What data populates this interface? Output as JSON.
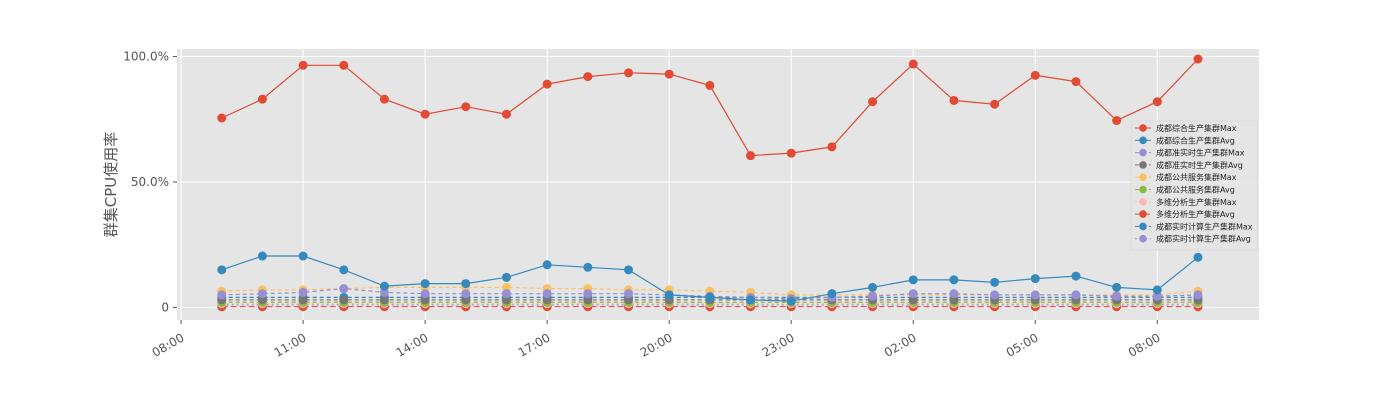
{
  "chart_data": {
    "type": "line",
    "title": "",
    "xlabel": "",
    "ylabel": "群集CPU使用率",
    "ylim": [
      -5,
      103
    ],
    "y_ticks": [
      {
        "value": 0,
        "label": "0"
      },
      {
        "value": 50,
        "label": "50.0%"
      },
      {
        "value": 100,
        "label": "100.0%"
      }
    ],
    "x_unit": "hours since first tick (08:00 day 1)",
    "x_range": [
      -0.1,
      26.5
    ],
    "x_ticks": [
      {
        "value": 0,
        "label": "08:00"
      },
      {
        "value": 3,
        "label": "11:00"
      },
      {
        "value": 6,
        "label": "14:00"
      },
      {
        "value": 9,
        "label": "17:00"
      },
      {
        "value": 12,
        "label": "20:00"
      },
      {
        "value": 15,
        "label": "23:00"
      },
      {
        "value": 18,
        "label": "02:00"
      },
      {
        "value": 21,
        "label": "05:00"
      },
      {
        "value": 24,
        "label": "08:00"
      }
    ],
    "x": [
      1,
      2,
      3,
      4,
      5,
      6,
      7,
      8,
      9,
      10,
      11,
      12,
      13,
      14,
      15,
      16,
      17,
      18,
      19,
      20,
      21,
      22,
      23,
      24,
      25
    ],
    "grid": true,
    "legend_position": "center-right",
    "series": [
      {
        "name": "成都综合生产集群Max",
        "color": "#E24A33",
        "dash": "",
        "values": [
          75.5,
          83,
          96.5,
          96.5,
          83,
          77,
          80,
          77,
          89,
          92,
          93.5,
          93,
          88.5,
          60.5,
          61.5,
          64,
          82,
          97,
          82.5,
          81,
          92.5,
          90,
          74.5,
          82,
          99
        ]
      },
      {
        "name": "成都综合生产集群Avg",
        "color": "#348ABD",
        "dash": "",
        "values": [
          15,
          20.5,
          20.5,
          15,
          8.5,
          9.5,
          9.5,
          12,
          17,
          16,
          15,
          5,
          4,
          3,
          2.5,
          5.5,
          8,
          11,
          11,
          10,
          11.5,
          12.5,
          8,
          7,
          20
        ]
      },
      {
        "name": "成都准实时生产集群Max",
        "color": "#988ED5",
        "dash": "4,3",
        "values": [
          5,
          5.5,
          6,
          7.5,
          6,
          5.5,
          5.5,
          5.5,
          5.5,
          5.5,
          5.5,
          5,
          4.5,
          4,
          3.5,
          4,
          4.5,
          5.5,
          5.5,
          5,
          5,
          5,
          4.5,
          4.5,
          5
        ]
      },
      {
        "name": "成都准实时生产集群Avg",
        "color": "#777777",
        "dash": "4,3",
        "values": [
          3,
          3,
          3,
          3,
          3,
          3,
          3,
          3,
          3,
          3,
          3,
          3,
          3,
          3,
          3,
          3,
          3,
          3,
          3,
          3,
          3,
          3,
          3,
          3,
          3
        ]
      },
      {
        "name": "成都公共服务集群Max",
        "color": "#FBC15E",
        "dash": "4,3",
        "values": [
          6.5,
          7,
          7,
          7.5,
          8,
          8,
          8,
          8,
          7.5,
          7.5,
          7,
          7,
          6.5,
          6,
          5,
          5,
          5,
          5,
          5,
          5,
          5,
          5,
          5,
          5,
          6.5
        ]
      },
      {
        "name": "成都公共服务集群Avg",
        "color": "#8EBA42",
        "dash": "4,3",
        "values": [
          2,
          2,
          2,
          2,
          2,
          2,
          2,
          2,
          2,
          2,
          2,
          2,
          2,
          2,
          2,
          2,
          2,
          2,
          2,
          2,
          2,
          2,
          2,
          2,
          2
        ]
      },
      {
        "name": "多维分析生产集群Max",
        "color": "#FFB5B8",
        "dash": "2,3",
        "values": [
          1.5,
          1.5,
          1.5,
          1.5,
          1.5,
          1.5,
          1.5,
          1.5,
          1.5,
          1.5,
          1.5,
          1.5,
          1.5,
          1.5,
          1.5,
          1.5,
          1.5,
          1.5,
          1.5,
          1.5,
          1.5,
          1.5,
          1.5,
          1.5,
          1.5
        ]
      },
      {
        "name": "多维分析生产集群Avg",
        "color": "#E24A33",
        "dash": "6,3",
        "values": [
          0.3,
          0.3,
          0.3,
          0.3,
          0.3,
          0.3,
          0.3,
          0.3,
          0.3,
          0.3,
          0.3,
          0.3,
          0.3,
          0.3,
          0.3,
          0.3,
          0.3,
          0.3,
          0.3,
          0.3,
          0.3,
          0.3,
          0.3,
          0.3,
          0.3
        ]
      },
      {
        "name": "成都实时计算生产集群Max",
        "color": "#348ABD",
        "dash": "4,3",
        "values": [
          4,
          4,
          4,
          4,
          4,
          4,
          4,
          4,
          4,
          4,
          4,
          4,
          4,
          4,
          4,
          4,
          4,
          4,
          4,
          4,
          4,
          4,
          4,
          4,
          4
        ]
      },
      {
        "name": "成都实时计算生产集群Avg",
        "color": "#988ED5",
        "dash": "2,3",
        "values": [
          1,
          1,
          1,
          1,
          1,
          1,
          1,
          1,
          1,
          1,
          1,
          1,
          1,
          1,
          1,
          1,
          1,
          1,
          1,
          1,
          1,
          1,
          1,
          1,
          1
        ]
      }
    ]
  }
}
